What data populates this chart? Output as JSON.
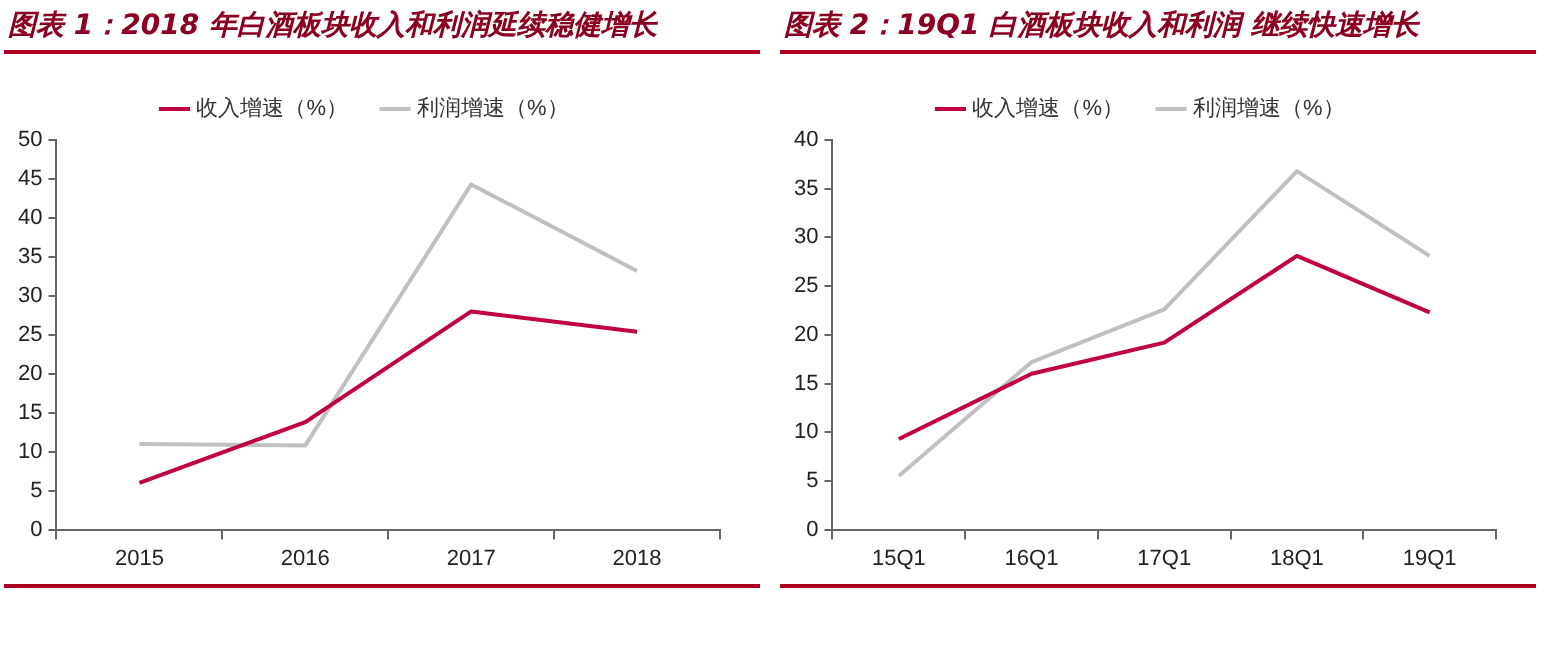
{
  "chart_data": [
    {
      "type": "line",
      "title": "图表 1：2018 年白酒板块收入和利润延续稳健增长",
      "categories": [
        "2015",
        "2016",
        "2017",
        "2018"
      ],
      "series": [
        {
          "name": "收入增速（%）",
          "color": "#c00040",
          "values": [
            6,
            13.8,
            28,
            25.4
          ]
        },
        {
          "name": "利润增速（%）",
          "color": "#c0c0c0",
          "values": [
            11,
            10.8,
            44.3,
            33.2
          ]
        }
      ],
      "ylim": [
        0,
        50
      ],
      "yticks": [
        0,
        5,
        10,
        15,
        20,
        25,
        30,
        35,
        40,
        45,
        50
      ],
      "grid": false,
      "legend": "top",
      "marker": "none",
      "line_style": "solid"
    },
    {
      "type": "line",
      "title": "图表 2：19Q1 白酒板块收入和利润 继续快速增长",
      "categories": [
        "15Q1",
        "16Q1",
        "17Q1",
        "18Q1",
        "19Q1"
      ],
      "series": [
        {
          "name": "收入增速（%）",
          "color": "#c00040",
          "values": [
            9.3,
            16,
            19.2,
            28.1,
            22.3
          ]
        },
        {
          "name": "利润增速（%）",
          "color": "#c0c0c0",
          "values": [
            5.5,
            17.2,
            22.6,
            36.8,
            28.1
          ]
        }
      ],
      "ylim": [
        0,
        40
      ],
      "yticks": [
        0,
        5,
        10,
        15,
        20,
        25,
        30,
        35,
        40
      ],
      "grid": false,
      "legend": "top",
      "marker": "none",
      "line_style": "solid"
    }
  ]
}
